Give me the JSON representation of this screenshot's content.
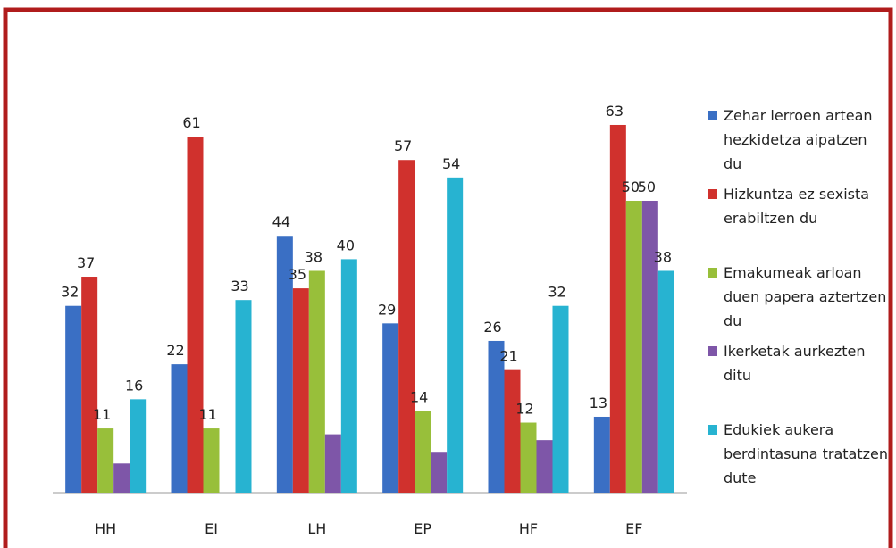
{
  "chart_data": {
    "type": "bar",
    "categories": [
      "HH",
      "EI",
      "LH",
      "EP",
      "HF",
      "EF"
    ],
    "ylim": [
      0,
      70
    ],
    "series": [
      {
        "name": "Zehar lerroen artean hezkidetza aipatzen du",
        "color": "#3a6fc4",
        "values": [
          32,
          22,
          44,
          29,
          26,
          13
        ]
      },
      {
        "name": "Hizkuntza ez sexista erabiltzen du",
        "color": "#d0312d",
        "values": [
          37,
          61,
          35,
          57,
          21,
          63
        ]
      },
      {
        "name": "Emakumeak arloan duen papera aztertzen du",
        "color": "#98bf3a",
        "values": [
          11,
          11,
          38,
          14,
          12,
          50
        ]
      },
      {
        "name": "Ikerketak aurkezten ditu",
        "color": "#7e56a8",
        "values": [
          5,
          null,
          10,
          7,
          9,
          50
        ],
        "value_labels": [
          null,
          null,
          null,
          null,
          null,
          "50"
        ]
      },
      {
        "name": "Edukiek aukera berdintasuna tratatzen dute",
        "color": "#27b3d1",
        "values": [
          16,
          33,
          40,
          54,
          32,
          38
        ]
      }
    ]
  }
}
